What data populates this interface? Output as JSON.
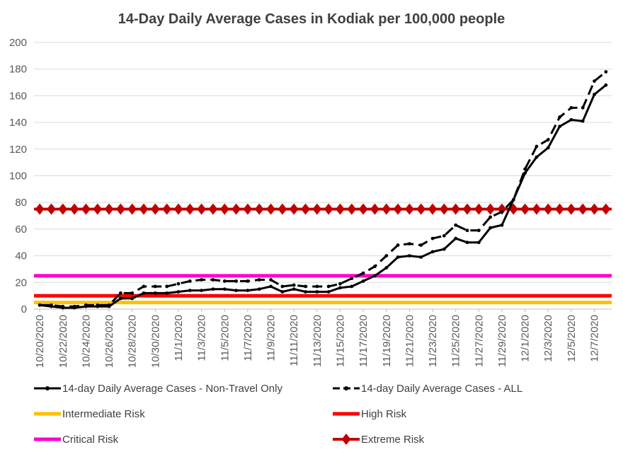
{
  "chart_data": {
    "type": "line",
    "title": "14-Day Daily Average Cases in Kodiak per 100,000 people",
    "xlabel": "",
    "ylabel": "",
    "ylim": [
      0,
      200
    ],
    "ytick_step": 20,
    "grid": true,
    "legend_position": "bottom",
    "categories": [
      "10/20/2020",
      "10/21/2020",
      "10/22/2020",
      "10/23/2020",
      "10/24/2020",
      "10/25/2020",
      "10/26/2020",
      "10/27/2020",
      "10/28/2020",
      "10/29/2020",
      "10/30/2020",
      "10/31/2020",
      "11/1/2020",
      "11/2/2020",
      "11/3/2020",
      "11/4/2020",
      "11/5/2020",
      "11/6/2020",
      "11/7/2020",
      "11/8/2020",
      "11/9/2020",
      "11/10/2020",
      "11/11/2020",
      "11/12/2020",
      "11/13/2020",
      "11/14/2020",
      "11/15/2020",
      "11/16/2020",
      "11/17/2020",
      "11/18/2020",
      "11/19/2020",
      "11/20/2020",
      "11/21/2020",
      "11/22/2020",
      "11/23/2020",
      "11/24/2020",
      "11/25/2020",
      "11/26/2020",
      "11/27/2020",
      "11/28/2020",
      "11/29/2020",
      "11/30/2020",
      "12/1/2020",
      "12/2/2020",
      "12/3/2020",
      "12/4/2020",
      "12/5/2020",
      "12/6/2020",
      "12/7/2020",
      "12/8/2020"
    ],
    "x_tick_labels": [
      "10/20/2020",
      "10/22/2020",
      "10/24/2020",
      "10/26/2020",
      "10/28/2020",
      "10/30/2020",
      "11/1/2020",
      "11/3/2020",
      "11/5/2020",
      "11/7/2020",
      "11/9/2020",
      "11/11/2020",
      "11/13/2020",
      "11/15/2020",
      "11/17/2020",
      "11/19/2020",
      "11/21/2020",
      "11/23/2020",
      "11/25/2020",
      "11/27/2020",
      "11/29/2020",
      "12/1/2020",
      "12/3/2020",
      "12/5/2020",
      "12/7/2020"
    ],
    "series": [
      {
        "name": "14-day Daily Average Cases - Non-Travel Only",
        "color": "#000000",
        "style": "solid",
        "marker": "circle",
        "values": [
          3,
          2,
          1,
          1,
          2,
          2,
          2,
          8,
          8,
          12,
          12,
          12,
          13,
          14,
          14,
          15,
          15,
          14,
          14,
          15,
          17,
          13,
          15,
          13,
          13,
          13,
          16,
          17,
          21,
          25,
          31,
          39,
          40,
          39,
          43,
          45,
          53,
          50,
          50,
          61,
          63,
          82,
          102,
          114,
          121,
          137,
          142,
          141,
          161,
          168
        ]
      },
      {
        "name": "14-day Daily Average Cases - ALL",
        "color": "#000000",
        "style": "dashed",
        "marker": "circle",
        "values": [
          3,
          3,
          2,
          2,
          3,
          3,
          3,
          12,
          12,
          17,
          17,
          17,
          19,
          21,
          22,
          22,
          21,
          21,
          21,
          22,
          22,
          17,
          18,
          17,
          17,
          17,
          19,
          23,
          27,
          32,
          40,
          48,
          49,
          48,
          53,
          55,
          63,
          59,
          59,
          69,
          73,
          82,
          105,
          122,
          127,
          144,
          151,
          151,
          171,
          178
        ]
      },
      {
        "name": "Intermediate Risk",
        "color": "#FFC000",
        "style": "threshold",
        "marker": "none",
        "value": 5
      },
      {
        "name": "High Risk",
        "color": "#FF0000",
        "style": "threshold",
        "marker": "none",
        "value": 10
      },
      {
        "name": "Critical Risk",
        "color": "#FF00CC",
        "style": "threshold",
        "marker": "none",
        "value": 25
      },
      {
        "name": "Extreme Risk",
        "color": "#C00000",
        "style": "threshold",
        "marker": "diamond",
        "value": 75
      }
    ]
  }
}
